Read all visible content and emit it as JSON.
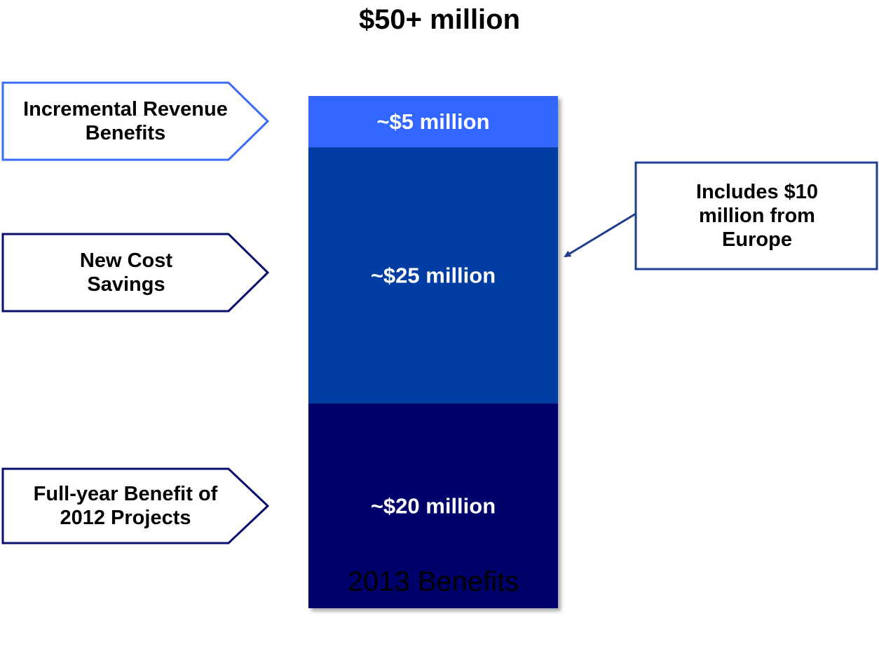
{
  "title": "$50+ million",
  "chart_data": {
    "type": "bar",
    "stacked": true,
    "categories": [
      "2013 Benefits"
    ],
    "xlabel": "2013 Benefits",
    "ylim": [
      0,
      50
    ],
    "series": [
      {
        "name": "Full-year Benefit of 2012 Projects",
        "values": [
          20
        ],
        "value_label": "~$20 million",
        "color": "#05046b"
      },
      {
        "name": "New Cost Savings",
        "values": [
          25
        ],
        "value_label": "~$25 million",
        "color": "#063ca2"
      },
      {
        "name": "Incremental Revenue Benefits",
        "values": [
          5
        ],
        "value_label": "~$5 million",
        "color": "#3366ff"
      }
    ],
    "annotation": "Includes $10 million from Europe"
  },
  "callouts": {
    "incremental": "Incremental Revenue Benefits",
    "new_cost": "New Cost Savings",
    "full_year": "Full-year Benefit of 2012 Projects"
  },
  "colors": {
    "callout_border_light": "#3a6cf4",
    "callout_border_dark": "#0a0f6e",
    "annotation_border": "#1f3e8c"
  }
}
